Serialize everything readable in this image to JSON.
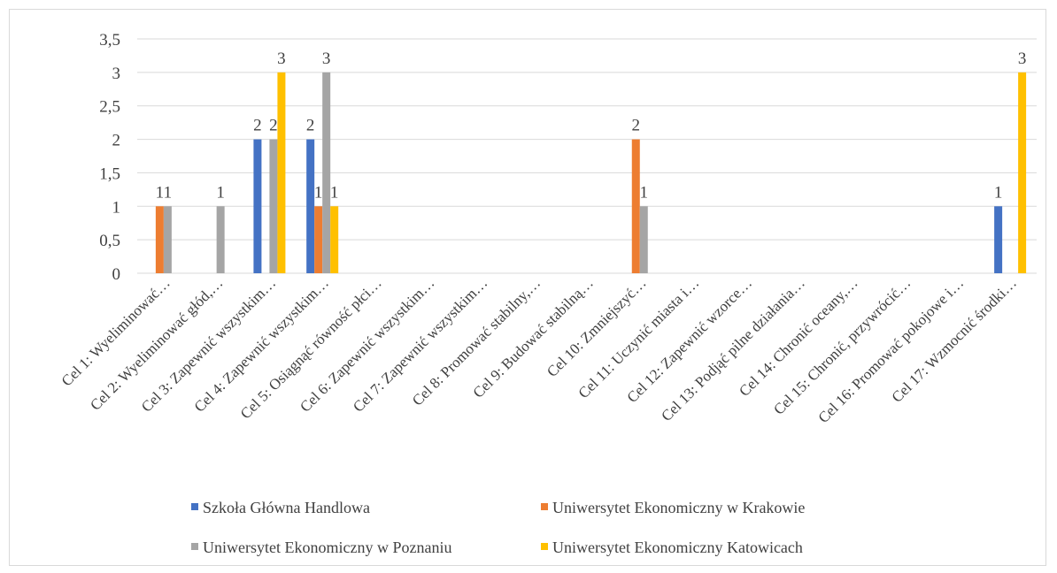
{
  "chart_data": {
    "type": "bar",
    "title": "",
    "xlabel": "",
    "ylabel": "",
    "ylim": [
      0,
      3.5
    ],
    "yticks": [
      "0",
      "0,5",
      "1",
      "1,5",
      "2",
      "2,5",
      "3",
      "3,5"
    ],
    "grid": true,
    "legend_position": "bottom",
    "categories": [
      "Cel 1: Wyeliminować…",
      "Cel 2: Wyeliminować głód,…",
      "Cel 3: Zapewnić wszystkim…",
      "Cel 4: Zapewnić wszystkim…",
      "Cel 5: Osiągnąć równość płci…",
      "Cel 6: Zapewnić wszystkim…",
      "Cel 7: Zapewnić wszystkim…",
      "Cel 8: Promować stabilny,…",
      "Cel 9: Budować stabilną…",
      "Cel 10: Zmniejszyć…",
      "Cel 11: Uczynić miasta i…",
      "Cel 12: Zapewnić wzorce…",
      "Cel 13: Podjąć pilne działania…",
      "Cel 14: Chronić oceany,…",
      "Cel 15: Chronić, przywrócić…",
      "Cel 16: Promować pokojowe i…",
      "Cel 17: Wzmocnić środki…"
    ],
    "series": [
      {
        "name": "Szkoła Główna Handlowa",
        "color": "#4472c4",
        "values": [
          null,
          null,
          2,
          2,
          null,
          null,
          null,
          null,
          null,
          null,
          null,
          null,
          null,
          null,
          null,
          null,
          1
        ]
      },
      {
        "name": "Uniwersytet Ekonomiczny w Krakowie",
        "color": "#ed7d31",
        "values": [
          1,
          null,
          null,
          1,
          null,
          null,
          null,
          null,
          null,
          2,
          null,
          null,
          null,
          null,
          null,
          null,
          null
        ]
      },
      {
        "name": "Uniwersytet Ekonomiczny w Poznaniu",
        "color": "#a5a5a5",
        "values": [
          1,
          1,
          2,
          3,
          null,
          null,
          null,
          null,
          null,
          1,
          null,
          null,
          null,
          null,
          null,
          null,
          null
        ]
      },
      {
        "name": "Uniwersytet Ekonomiczny Katowicach",
        "color": "#ffc000",
        "values": [
          null,
          null,
          3,
          1,
          null,
          null,
          null,
          null,
          null,
          null,
          null,
          null,
          null,
          null,
          null,
          null,
          3
        ]
      }
    ]
  }
}
